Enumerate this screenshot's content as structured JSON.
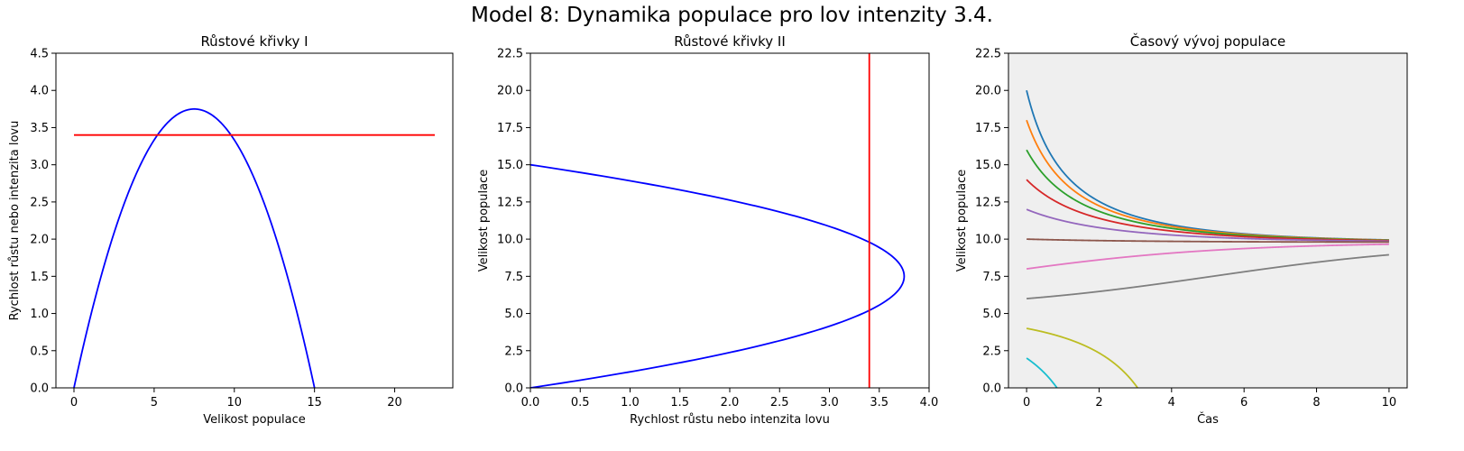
{
  "figure": {
    "suptitle": "Model 8: Dynamika populace pro lov intenzity 3.4."
  },
  "chart_data": [
    {
      "type": "line",
      "title": "Růstové křivky I",
      "xlabel": "Velikost populace",
      "ylabel": "Rychlost růstu nebo intenzita lovu",
      "xlim": [
        -1.125,
        23.625
      ],
      "ylim": [
        0,
        4.5
      ],
      "xticks": [
        0,
        5,
        10,
        15,
        20
      ],
      "yticks": [
        0.0,
        0.5,
        1.0,
        1.5,
        2.0,
        2.5,
        3.0,
        3.5,
        4.0,
        4.5
      ],
      "grid": false,
      "series": [
        {
          "kind": "logistic_growth",
          "r": 1,
          "K": 15,
          "x_range": [
            0,
            15
          ],
          "color": "#0000ff"
        },
        {
          "kind": "constant",
          "x": [
            0,
            22.5
          ],
          "y": [
            3.4,
            3.4
          ],
          "color": "#ff0000"
        }
      ]
    },
    {
      "type": "line",
      "title": "Růstové křivky II",
      "xlabel": "Rychlost růstu nebo intenzita lovu",
      "ylabel": "Velikost populace",
      "xlim": [
        0,
        4.0
      ],
      "ylim": [
        0,
        22.5
      ],
      "xticks": [
        0.0,
        0.5,
        1.0,
        1.5,
        2.0,
        2.5,
        3.0,
        3.5,
        4.0
      ],
      "yticks": [
        0.0,
        2.5,
        5.0,
        7.5,
        10.0,
        12.5,
        15.0,
        17.5,
        20.0,
        22.5
      ],
      "grid": false,
      "series": [
        {
          "kind": "logistic_growth_transposed",
          "r": 1,
          "K": 15,
          "y_range": [
            0,
            15
          ],
          "color": "#0000ff"
        },
        {
          "kind": "vertical",
          "x": [
            3.4,
            3.4
          ],
          "y": [
            0,
            22.5
          ],
          "color": "#ff0000"
        }
      ]
    },
    {
      "type": "line",
      "title": "Časový vývoj populace",
      "xlabel": "Čas",
      "ylabel": "Velikost populace",
      "xlim": [
        -0.5,
        10.5
      ],
      "ylim": [
        0,
        22.5
      ],
      "xticks": [
        0,
        2,
        4,
        6,
        8,
        10
      ],
      "yticks": [
        0.0,
        2.5,
        5.0,
        7.5,
        10.0,
        12.5,
        15.0,
        17.5,
        20.0,
        22.5
      ],
      "background": "#efefef",
      "grid": false,
      "model": {
        "r": 1,
        "K": 15,
        "h": 3.4,
        "t_range": [
          0,
          10
        ]
      },
      "series": [
        {
          "y0": 20,
          "color": "#1f77b4"
        },
        {
          "y0": 18,
          "color": "#ff7f0e"
        },
        {
          "y0": 16,
          "color": "#2ca02c"
        },
        {
          "y0": 14,
          "color": "#d62728"
        },
        {
          "y0": 12,
          "color": "#9467bd"
        },
        {
          "y0": 10,
          "color": "#8c564b"
        },
        {
          "y0": 8,
          "color": "#e377c2"
        },
        {
          "y0": 6,
          "color": "#7f7f7f"
        },
        {
          "y0": 4,
          "color": "#bcbd22"
        },
        {
          "y0": 2,
          "color": "#17becf"
        }
      ]
    }
  ]
}
